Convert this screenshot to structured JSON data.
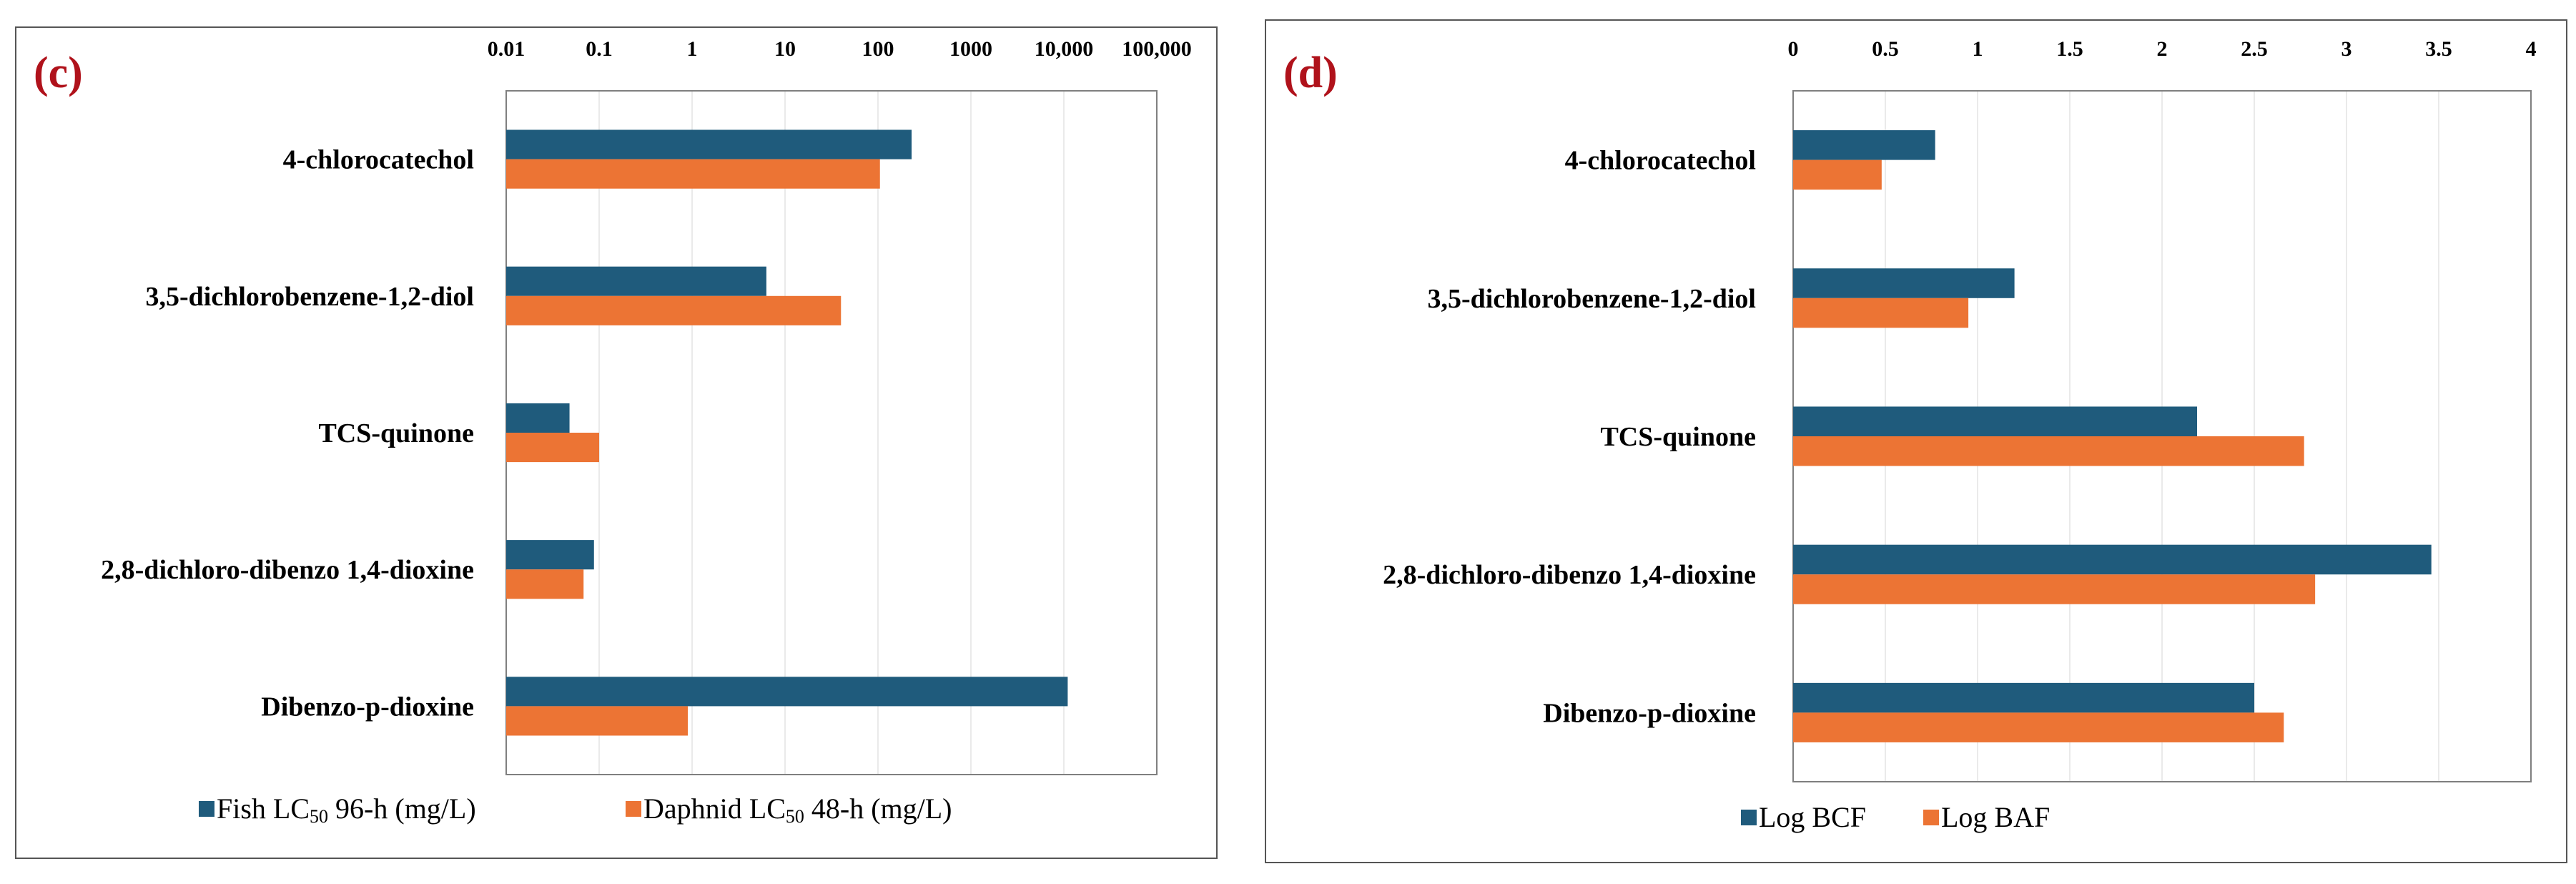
{
  "colors": {
    "series1": "#1f5b7c",
    "series2": "#ec7434",
    "panel_label": "#b0121b"
  },
  "chart_data": [
    {
      "panel_label": "(c)",
      "type": "bar",
      "orientation": "horizontal",
      "axis_scale": "log",
      "axis_position": "top",
      "xlim": [
        0.01,
        100000
      ],
      "tick_values": [
        0.01,
        0.1,
        1,
        10,
        100,
        1000,
        10000,
        100000
      ],
      "tick_labels": [
        "0.01",
        "0.1",
        "1",
        "10",
        "100",
        "1000",
        "10,000",
        "100,000"
      ],
      "categories": [
        "4-chlorocatechol",
        "3,5-dichlorobenzene-1,2-diol",
        "TCS-quinone",
        "2,8-dichloro-dibenzo 1,4-dioxine",
        "Dibenzo-p-dioxine"
      ],
      "series": [
        {
          "name": "Fish LC50 96-h (mg/L)",
          "legend_prefix": "Fish LC",
          "legend_sub": "50",
          "legend_suffix": " 96-h (mg/L)",
          "values": [
            230,
            6.3,
            0.048,
            0.088,
            11000
          ]
        },
        {
          "name": "Daphnid LC50 48-h (mg/L)",
          "legend_prefix": "Daphnid LC",
          "legend_sub": "50",
          "legend_suffix": " 48-h (mg/L)",
          "values": [
            105,
            40,
            0.1,
            0.068,
            0.9
          ]
        }
      ],
      "grid": true,
      "legend_position": "bottom"
    },
    {
      "panel_label": "(d)",
      "type": "bar",
      "orientation": "horizontal",
      "axis_scale": "linear",
      "axis_position": "top",
      "xlim": [
        0,
        4
      ],
      "tick_values": [
        0,
        0.5,
        1,
        1.5,
        2,
        2.5,
        3,
        3.5,
        4
      ],
      "tick_labels": [
        "0",
        "0.5",
        "1",
        "1.5",
        "2",
        "2.5",
        "3",
        "3.5",
        "4"
      ],
      "categories": [
        "4-chlorocatechol",
        "3,5-dichlorobenzene-1,2-diol",
        "TCS-quinone",
        "2,8-dichloro-dibenzo 1,4-dioxine",
        "Dibenzo-p-dioxine"
      ],
      "series": [
        {
          "name": "Log BCF",
          "legend_prefix": "Log BCF",
          "legend_sub": "",
          "legend_suffix": "",
          "values": [
            0.77,
            1.2,
            2.19,
            3.46,
            2.5
          ]
        },
        {
          "name": "Log BAF",
          "legend_prefix": "Log BAF",
          "legend_sub": "",
          "legend_suffix": "",
          "values": [
            0.48,
            0.95,
            2.77,
            2.83,
            2.66
          ]
        }
      ],
      "grid": true,
      "legend_position": "bottom"
    }
  ]
}
